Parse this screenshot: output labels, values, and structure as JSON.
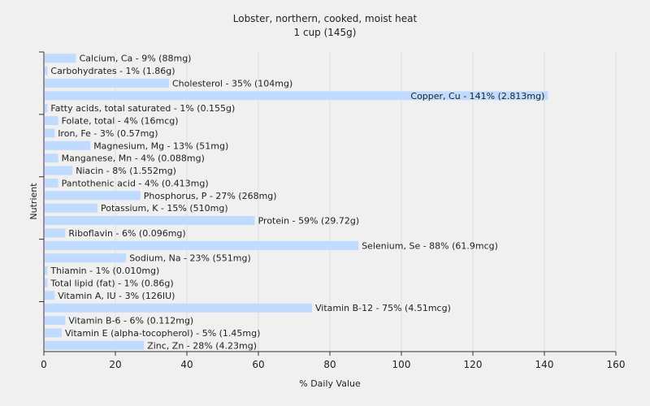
{
  "chart_data": {
    "type": "bar",
    "orientation": "horizontal",
    "title": "Lobster, northern, cooked, moist heat",
    "subtitle": "1 cup (145g)",
    "xlabel": "% Daily Value",
    "ylabel": "Nutrient",
    "xlim": [
      0,
      160
    ],
    "xticks": [
      0,
      20,
      40,
      60,
      80,
      100,
      120,
      140,
      160
    ],
    "grid": "vertical",
    "bar_color": "#bfdbff",
    "categories": [
      "Calcium, Ca - 9% (88mg)",
      "Carbohydrates - 1% (1.86g)",
      "Cholesterol - 35% (104mg)",
      "Copper, Cu - 141% (2.813mg)",
      "Fatty acids, total saturated - 1% (0.155g)",
      "Folate, total - 4% (16mcg)",
      "Iron, Fe - 3% (0.57mg)",
      "Magnesium, Mg - 13% (51mg)",
      "Manganese, Mn - 4% (0.088mg)",
      "Niacin - 8% (1.552mg)",
      "Pantothenic acid - 4% (0.413mg)",
      "Phosphorus, P - 27% (268mg)",
      "Potassium, K - 15% (510mg)",
      "Protein - 59% (29.72g)",
      "Riboflavin - 6% (0.096mg)",
      "Selenium, Se - 88% (61.9mcg)",
      "Sodium, Na - 23% (551mg)",
      "Thiamin - 1% (0.010mg)",
      "Total lipid (fat) - 1% (0.86g)",
      "Vitamin A, IU - 3% (126IU)",
      "Vitamin B-12 - 75% (4.51mcg)",
      "Vitamin B-6 - 6% (0.112mg)",
      "Vitamin E (alpha-tocopherol) - 5% (1.45mg)",
      "Zinc, Zn - 28% (4.23mg)"
    ],
    "values": [
      9,
      1,
      35,
      141,
      1,
      4,
      3,
      13,
      4,
      8,
      4,
      27,
      15,
      59,
      6,
      88,
      23,
      1,
      1,
      3,
      75,
      6,
      5,
      28
    ]
  }
}
